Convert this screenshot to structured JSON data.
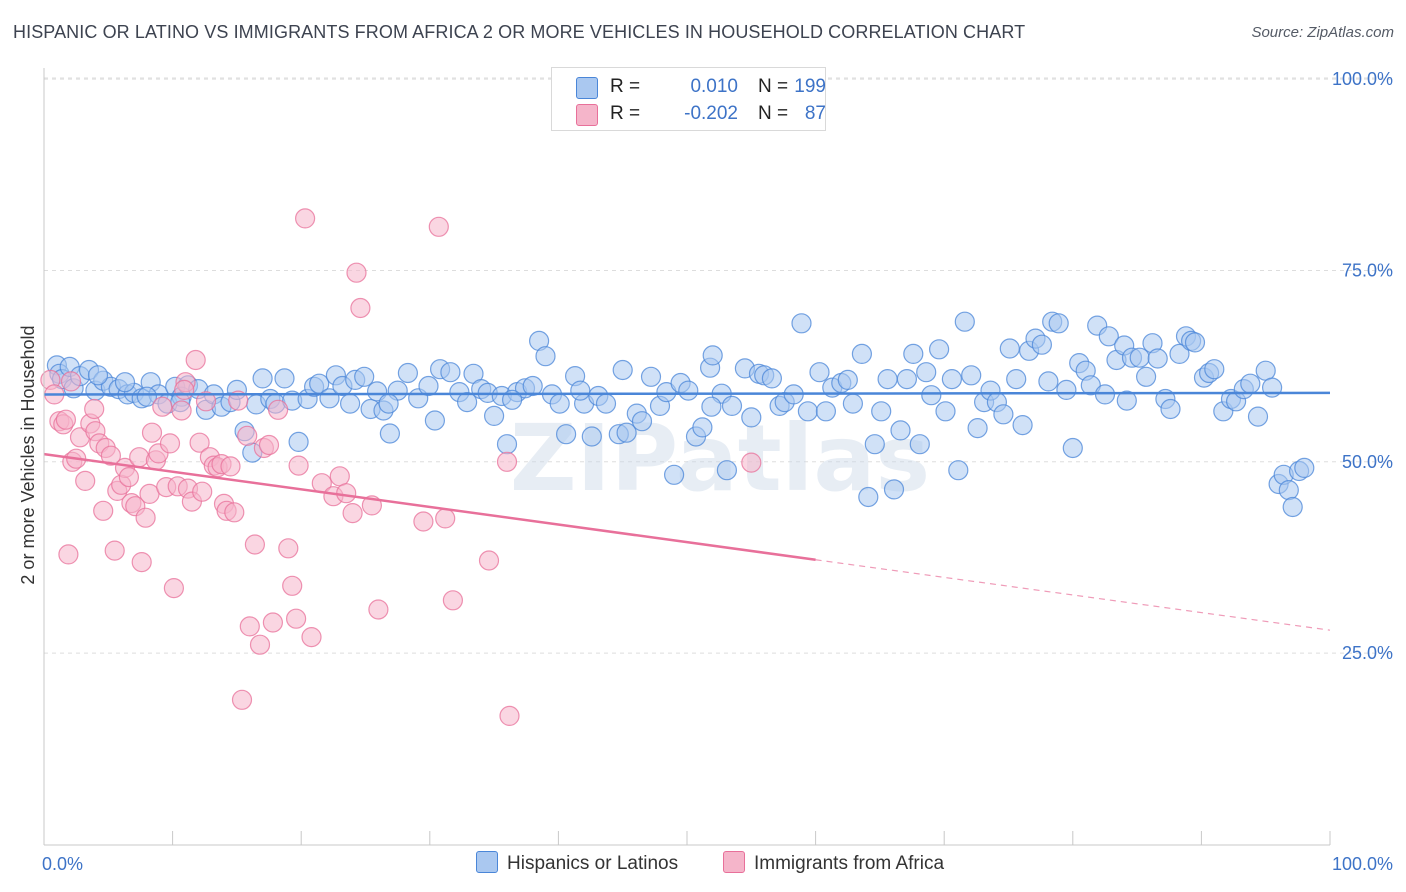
{
  "title": "HISPANIC OR LATINO VS IMMIGRANTS FROM AFRICA 2 OR MORE VEHICLES IN HOUSEHOLD CORRELATION CHART",
  "source": "Source: ZipAtlas.com",
  "watermark": "ZIPatlas",
  "colors": {
    "blue": "#4a86d8",
    "blue_fill": "#aac8f0",
    "pink": "#e8709a",
    "pink_fill": "#f5b5ca",
    "tick_label": "#3d73c7",
    "grid": "#dddddd"
  },
  "legend_top": {
    "rows": [
      {
        "r_label": "R =",
        "r_value": "0.010",
        "n_label": "N =",
        "n_value": "199",
        "color": "#aac8f0"
      },
      {
        "r_label": "R =",
        "r_value": "-0.202",
        "n_label": "N =",
        "n_value": "87",
        "color": "#f5b5ca"
      }
    ]
  },
  "legend_bottom": [
    {
      "label": "Hispanics or Latinos",
      "color": "#aac8f0"
    },
    {
      "label": "Immigrants from Africa",
      "color": "#f5b5ca"
    }
  ],
  "chart_data": {
    "type": "scatter",
    "title": "HISPANIC OR LATINO VS IMMIGRANTS FROM AFRICA 2 OR MORE VEHICLES IN HOUSEHOLD CORRELATION CHART",
    "xlabel": "",
    "ylabel": "2 or more Vehicles in Household",
    "xlim": [
      0,
      100
    ],
    "ylim": [
      0,
      103
    ],
    "x_tick_labels": [
      "0.0%",
      "100.0%"
    ],
    "y_ticks": [
      25,
      50,
      75,
      100
    ],
    "y_tick_labels": [
      "25.0%",
      "50.0%",
      "75.0%",
      "100.0%"
    ],
    "grid": true,
    "legend_position": "top-center",
    "series": [
      {
        "name": "Hispanics or Latinos",
        "color": "#4a86d8",
        "R": 0.01,
        "N": 199,
        "trend": {
          "x": [
            0,
            100
          ],
          "y": [
            58.8,
            59.0
          ]
        },
        "points": [
          [
            1,
            62.6
          ],
          [
            1.2,
            61.5
          ],
          [
            1.4,
            60.8
          ],
          [
            2,
            62.4
          ],
          [
            2.3,
            59.6
          ],
          [
            2.8,
            61.2
          ],
          [
            3.5,
            62
          ],
          [
            4,
            59.3
          ],
          [
            4.6,
            60.6
          ],
          [
            5.2,
            59.8
          ],
          [
            5.8,
            59.5
          ],
          [
            6.5,
            58.8
          ],
          [
            7,
            59
          ],
          [
            7.6,
            58.3
          ],
          [
            8.3,
            60.4
          ],
          [
            8.9,
            58.8
          ],
          [
            9.6,
            57.6
          ],
          [
            10.2,
            59.8
          ],
          [
            10.7,
            58.5
          ],
          [
            11.2,
            60
          ],
          [
            12,
            59.5
          ],
          [
            12.6,
            56.8
          ],
          [
            13.2,
            58.8
          ],
          [
            13.8,
            57.2
          ],
          [
            14.5,
            57.8
          ],
          [
            15,
            59.4
          ],
          [
            15.6,
            54
          ],
          [
            16.2,
            51.2
          ],
          [
            16.5,
            57.5
          ],
          [
            17,
            60.9
          ],
          [
            17.6,
            58.2
          ],
          [
            18,
            57.6
          ],
          [
            18.7,
            60.9
          ],
          [
            19.3,
            58
          ],
          [
            19.8,
            52.6
          ],
          [
            20.5,
            58.2
          ],
          [
            21,
            59.8
          ],
          [
            21.4,
            60.2
          ],
          [
            22.2,
            58.3
          ],
          [
            22.7,
            61.3
          ],
          [
            23.2,
            59.9
          ],
          [
            23.8,
            57.6
          ],
          [
            24.2,
            60.7
          ],
          [
            24.9,
            61.1
          ],
          [
            25.4,
            56.9
          ],
          [
            25.9,
            59.2
          ],
          [
            26.4,
            56.7
          ],
          [
            26.9,
            53.7
          ],
          [
            27.5,
            59.3
          ],
          [
            28.3,
            61.6
          ],
          [
            29.1,
            58.3
          ],
          [
            29.9,
            59.9
          ],
          [
            30.4,
            55.4
          ],
          [
            30.8,
            62.1
          ],
          [
            31.6,
            61.7
          ],
          [
            32.3,
            59.1
          ],
          [
            32.9,
            57.8
          ],
          [
            33.4,
            61.5
          ],
          [
            34,
            59.5
          ],
          [
            34.5,
            59
          ],
          [
            35,
            56
          ],
          [
            35.6,
            58.6
          ],
          [
            36,
            52.3
          ],
          [
            36.8,
            59.1
          ],
          [
            37.4,
            59.6
          ],
          [
            38,
            59.9
          ],
          [
            38.5,
            65.8
          ],
          [
            39,
            63.8
          ],
          [
            39.5,
            58.8
          ],
          [
            40.1,
            57.6
          ],
          [
            40.6,
            53.6
          ],
          [
            41.3,
            61.2
          ],
          [
            42,
            57.6
          ],
          [
            42.6,
            53.3
          ],
          [
            43.1,
            58.6
          ],
          [
            43.7,
            57.6
          ],
          [
            44.7,
            53.6
          ],
          [
            45,
            62
          ],
          [
            45.3,
            53.8
          ],
          [
            46.1,
            56.3
          ],
          [
            46.5,
            55.3
          ],
          [
            47.2,
            61.1
          ],
          [
            47.9,
            57.3
          ],
          [
            48.4,
            59.1
          ],
          [
            49,
            48.3
          ],
          [
            49.5,
            60.3
          ],
          [
            50.1,
            59.3
          ],
          [
            50.7,
            53.3
          ],
          [
            51.2,
            54.5
          ],
          [
            51.8,
            62.3
          ],
          [
            52,
            63.9
          ],
          [
            52.7,
            58.9
          ],
          [
            53.1,
            48.9
          ],
          [
            53.5,
            57.3
          ],
          [
            54.5,
            62.2
          ],
          [
            55,
            55.8
          ],
          [
            55.6,
            61.5
          ],
          [
            56,
            61.3
          ],
          [
            56.6,
            60.9
          ],
          [
            57.2,
            57.3
          ],
          [
            57.6,
            57.8
          ],
          [
            58.3,
            58.8
          ],
          [
            58.9,
            68.1
          ],
          [
            59.4,
            56.6
          ],
          [
            60.3,
            61.7
          ],
          [
            60.8,
            56.6
          ],
          [
            61.3,
            59.7
          ],
          [
            62,
            60.3
          ],
          [
            62.5,
            60.7
          ],
          [
            62.9,
            57.6
          ],
          [
            63.6,
            64.1
          ],
          [
            64.1,
            45.4
          ],
          [
            64.6,
            52.3
          ],
          [
            65.1,
            56.6
          ],
          [
            65.6,
            60.8
          ],
          [
            66.1,
            46.4
          ],
          [
            66.6,
            54.1
          ],
          [
            67.1,
            60.8
          ],
          [
            67.6,
            64.1
          ],
          [
            68.1,
            52.3
          ],
          [
            68.6,
            61.7
          ],
          [
            69,
            58.7
          ],
          [
            69.6,
            64.7
          ],
          [
            70.1,
            56.6
          ],
          [
            70.6,
            60.8
          ],
          [
            71.1,
            48.9
          ],
          [
            71.6,
            68.3
          ],
          [
            72.1,
            61.3
          ],
          [
            72.6,
            54.4
          ],
          [
            73.1,
            57.8
          ],
          [
            73.6,
            59.3
          ],
          [
            74.1,
            57.8
          ],
          [
            74.6,
            56.2
          ],
          [
            75.1,
            64.8
          ],
          [
            75.6,
            60.8
          ],
          [
            76.1,
            54.8
          ],
          [
            76.6,
            64.5
          ],
          [
            77.1,
            66.1
          ],
          [
            77.6,
            65.3
          ],
          [
            78.1,
            60.5
          ],
          [
            78.4,
            68.3
          ],
          [
            78.9,
            68.1
          ],
          [
            79.5,
            59.4
          ],
          [
            80,
            51.8
          ],
          [
            80.5,
            62.9
          ],
          [
            81,
            61.9
          ],
          [
            81.4,
            60
          ],
          [
            81.9,
            67.8
          ],
          [
            82.5,
            58.8
          ],
          [
            82.8,
            66.4
          ],
          [
            83.4,
            63.3
          ],
          [
            84,
            65.2
          ],
          [
            84.2,
            58
          ],
          [
            84.6,
            63.6
          ],
          [
            85.2,
            63.6
          ],
          [
            85.7,
            61.1
          ],
          [
            86.2,
            65.5
          ],
          [
            86.6,
            63.5
          ],
          [
            87.2,
            58.2
          ],
          [
            87.6,
            56.9
          ],
          [
            88.3,
            64.1
          ],
          [
            88.8,
            66.4
          ],
          [
            89.2,
            65.8
          ],
          [
            89.5,
            65.6
          ],
          [
            90.2,
            61
          ],
          [
            90.6,
            61.6
          ],
          [
            91,
            62.1
          ],
          [
            91.7,
            56.6
          ],
          [
            92.3,
            58.2
          ],
          [
            92.7,
            57.9
          ],
          [
            93.3,
            59.5
          ],
          [
            93.8,
            60.2
          ],
          [
            94.4,
            55.9
          ],
          [
            95,
            61.9
          ],
          [
            95.5,
            59.7
          ],
          [
            96,
            47.1
          ],
          [
            96.4,
            48.3
          ],
          [
            96.8,
            46.3
          ],
          [
            97.1,
            44.1
          ],
          [
            97.6,
            48.8
          ],
          [
            98,
            49.2
          ],
          [
            41.7,
            59.3
          ],
          [
            36.4,
            58.1
          ],
          [
            10.6,
            57.8
          ],
          [
            4.2,
            61.3
          ],
          [
            6.3,
            60.4
          ],
          [
            8,
            58.5
          ],
          [
            26.8,
            57.6
          ],
          [
            51.9,
            57.2
          ]
        ]
      },
      {
        "name": "Immigrants from Africa",
        "color": "#e8709a",
        "R": -0.202,
        "N": 87,
        "trend": {
          "x": [
            0,
            60
          ],
          "y": [
            51.0,
            37.2
          ]
        },
        "trend_dashed": {
          "x": [
            60,
            100
          ],
          "y": [
            37.2,
            28.0
          ]
        },
        "points": [
          [
            0.5,
            60.7
          ],
          [
            0.8,
            58.8
          ],
          [
            1.2,
            55.3
          ],
          [
            1.5,
            54.9
          ],
          [
            1.7,
            55.5
          ],
          [
            1.9,
            37.9
          ],
          [
            2.2,
            50
          ],
          [
            2.5,
            50.4
          ],
          [
            2.8,
            53.2
          ],
          [
            3.2,
            47.5
          ],
          [
            3.6,
            55
          ],
          [
            3.9,
            56.9
          ],
          [
            4,
            54
          ],
          [
            4.3,
            52.4
          ],
          [
            4.6,
            43.6
          ],
          [
            4.8,
            51.8
          ],
          [
            5.2,
            50.8
          ],
          [
            5.5,
            38.4
          ],
          [
            5.7,
            46.2
          ],
          [
            6,
            47
          ],
          [
            6.3,
            49.2
          ],
          [
            6.6,
            48
          ],
          [
            6.8,
            44.6
          ],
          [
            7.1,
            44.2
          ],
          [
            7.4,
            50.6
          ],
          [
            7.6,
            36.9
          ],
          [
            7.9,
            42.7
          ],
          [
            8.2,
            45.8
          ],
          [
            8.4,
            53.8
          ],
          [
            8.7,
            50.2
          ],
          [
            8.9,
            51.1
          ],
          [
            9.2,
            57.2
          ],
          [
            9.5,
            46.7
          ],
          [
            9.8,
            52.4
          ],
          [
            10.1,
            33.5
          ],
          [
            10.4,
            46.8
          ],
          [
            10.7,
            56.7
          ],
          [
            11,
            60.4
          ],
          [
            11.2,
            46.5
          ],
          [
            11.5,
            44.8
          ],
          [
            11.8,
            63.3
          ],
          [
            12.1,
            52.5
          ],
          [
            12.3,
            46.1
          ],
          [
            12.6,
            57.9
          ],
          [
            12.9,
            50.6
          ],
          [
            13.2,
            49.5
          ],
          [
            13.5,
            49.3
          ],
          [
            13.8,
            49.7
          ],
          [
            14,
            44.5
          ],
          [
            14.2,
            43.6
          ],
          [
            14.5,
            49.4
          ],
          [
            14.8,
            43.4
          ],
          [
            15.1,
            58
          ],
          [
            15.4,
            18.9
          ],
          [
            15.8,
            53.4
          ],
          [
            16,
            28.5
          ],
          [
            16.4,
            39.2
          ],
          [
            16.8,
            26.1
          ],
          [
            17.1,
            51.8
          ],
          [
            17.5,
            52.2
          ],
          [
            17.8,
            29
          ],
          [
            18.2,
            56.8
          ],
          [
            19,
            38.7
          ],
          [
            19.3,
            33.8
          ],
          [
            19.6,
            29.5
          ],
          [
            19.8,
            49.5
          ],
          [
            20.3,
            81.8
          ],
          [
            20.8,
            27.1
          ],
          [
            21.6,
            47.2
          ],
          [
            22.5,
            45.5
          ],
          [
            23,
            48.1
          ],
          [
            23.5,
            45.9
          ],
          [
            24,
            43.3
          ],
          [
            24.3,
            74.7
          ],
          [
            24.6,
            70.1
          ],
          [
            25.5,
            44.3
          ],
          [
            26,
            30.7
          ],
          [
            29.5,
            42.2
          ],
          [
            30.7,
            80.7
          ],
          [
            31.2,
            42.6
          ],
          [
            31.8,
            31.9
          ],
          [
            34.6,
            37.1
          ],
          [
            36.2,
            16.8
          ],
          [
            36,
            50
          ],
          [
            55,
            49.9
          ],
          [
            10.9,
            59.4
          ],
          [
            2.1,
            60.5
          ]
        ]
      }
    ]
  }
}
